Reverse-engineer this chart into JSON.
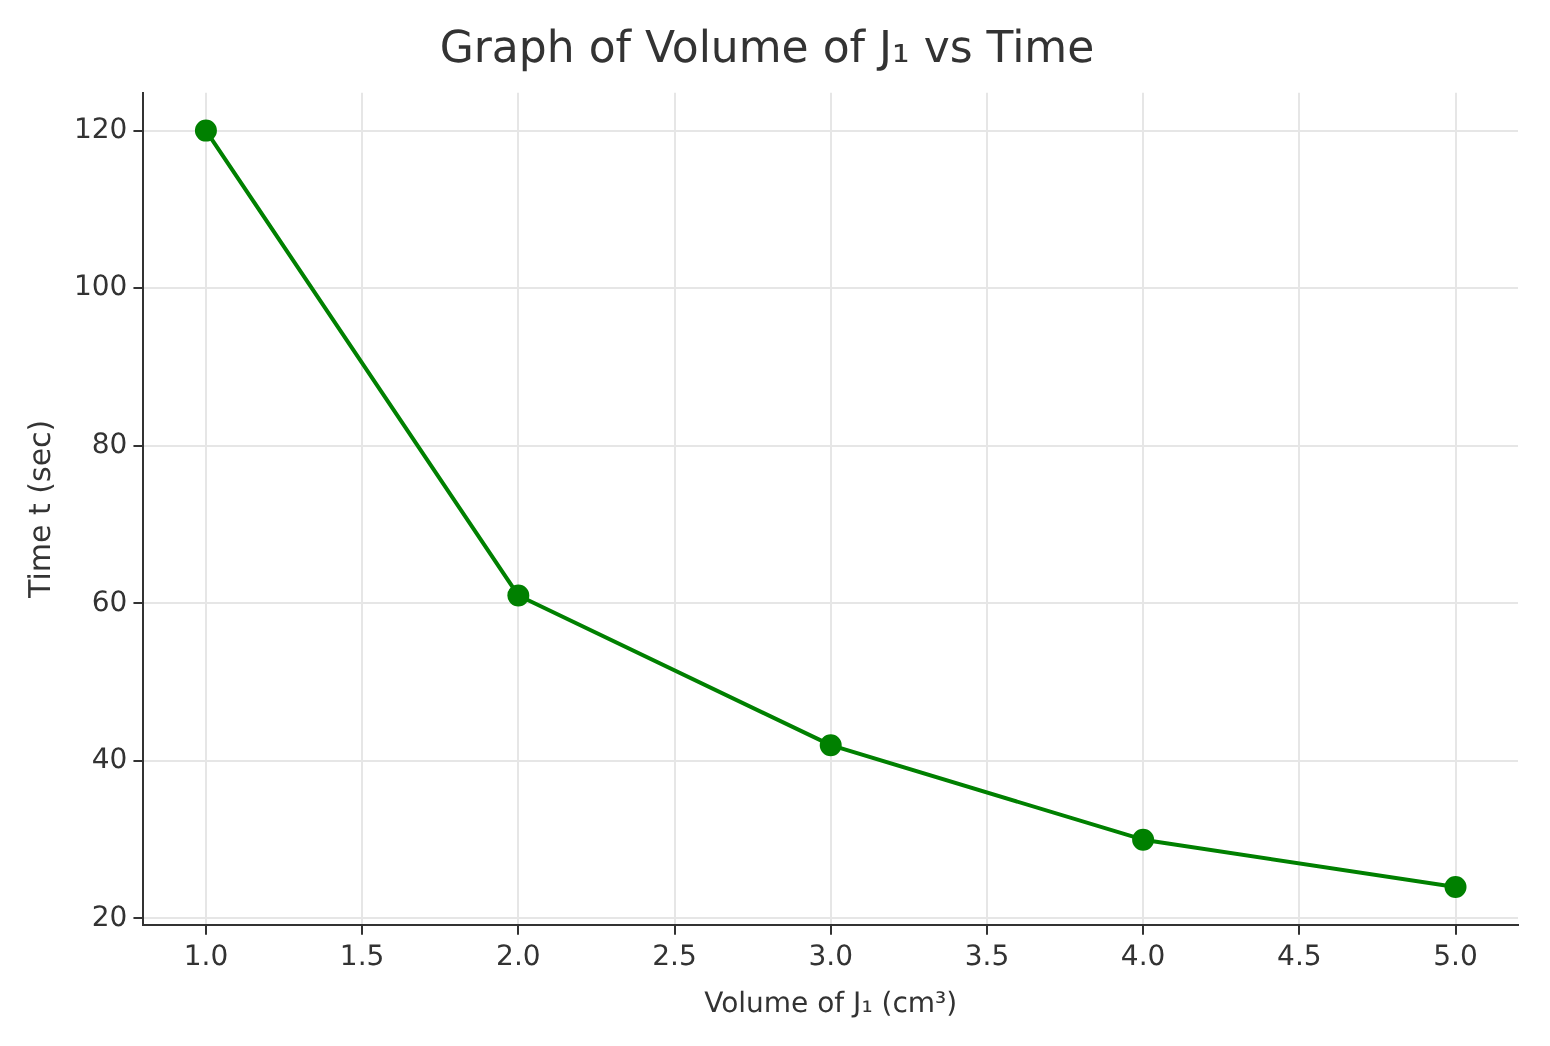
{
  "chart_data": {
    "type": "line",
    "title": "Graph of Volume of J₁ vs Time",
    "xlabel": "Volume of J₁ (cm³)",
    "ylabel": "Time t (sec)",
    "x": [
      1,
      2,
      3,
      4,
      5
    ],
    "series": [
      {
        "color": "#008000",
        "values": [
          120,
          61,
          42,
          30,
          24
        ]
      }
    ],
    "xlim": [
      0.8,
      5.2
    ],
    "xticks": [
      {
        "value": 1,
        "label": "1.0"
      },
      {
        "value": 1.5,
        "label": "1.5"
      },
      {
        "value": 2,
        "label": "2.0"
      },
      {
        "value": 2.5,
        "label": "2.5"
      },
      {
        "value": 3,
        "label": "3.0"
      },
      {
        "value": 3.5,
        "label": "3.5"
      },
      {
        "value": 4,
        "label": "4.0"
      },
      {
        "value": 4.5,
        "label": "4.5"
      },
      {
        "value": 5,
        "label": "5.0"
      }
    ],
    "ylim": [
      19.2,
      124.8
    ],
    "yticks": [
      20,
      40,
      60,
      80,
      100,
      120
    ],
    "grid": true,
    "marker": "circle",
    "line_style": "solid"
  }
}
